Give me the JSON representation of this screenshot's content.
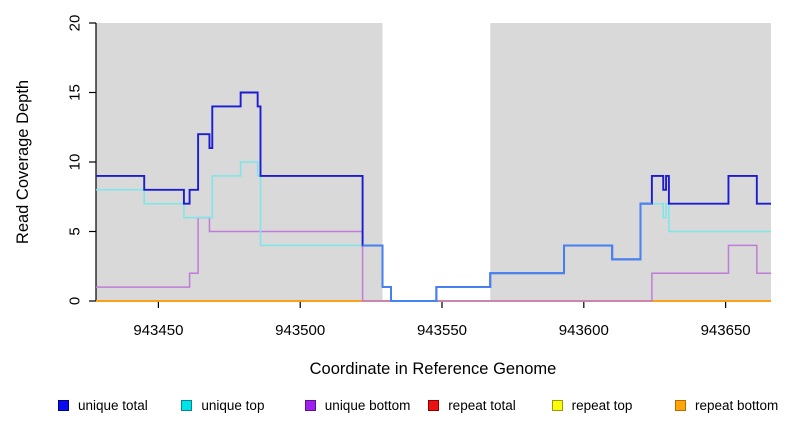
{
  "chart_data": {
    "type": "line",
    "subtype": "step-after-coverage-plot",
    "title": "",
    "xlabel": "Coordinate in Reference Genome",
    "ylabel": "Read Coverage Depth",
    "xlim": [
      943428,
      943666
    ],
    "ylim": [
      0,
      20
    ],
    "x_ticks": [
      943450,
      943500,
      943550,
      943600,
      943650
    ],
    "y_ticks": [
      0,
      5,
      10,
      15,
      20
    ],
    "grid": "off",
    "plot_bg_color": "#d9d9d9",
    "gap_region_color": "#ffffff",
    "shaded_regions": [
      [
        943428,
        943529
      ],
      [
        943567,
        943666
      ]
    ],
    "gap_region": [
      943529,
      943567
    ],
    "legend_position": "bottom",
    "series": [
      {
        "name": "unique total",
        "line_color": "#1c1cd2",
        "overlap_line_color": "#4583f0",
        "legend_fill": "#0a0aee",
        "legend_border": "#000080",
        "points": [
          [
            943428,
            9
          ],
          [
            943445,
            8
          ],
          [
            943459,
            7
          ],
          [
            943461,
            8
          ],
          [
            943464,
            12
          ],
          [
            943468,
            11
          ],
          [
            943469,
            14
          ],
          [
            943479,
            15
          ],
          [
            943485,
            14
          ],
          [
            943486,
            9
          ],
          [
            943522,
            4
          ],
          [
            943529,
            1
          ],
          [
            943532,
            0
          ],
          [
            943548,
            1
          ],
          [
            943567,
            2
          ],
          [
            943593,
            4
          ],
          [
            943610,
            3
          ],
          [
            943620,
            7
          ],
          [
            943624,
            9
          ],
          [
            943628,
            8
          ],
          [
            943629,
            9
          ],
          [
            943630,
            7
          ],
          [
            943651,
            9
          ],
          [
            943661,
            7
          ]
        ]
      },
      {
        "name": "unique top",
        "line_color": "#7de6e9",
        "legend_fill": "#00e2ea",
        "legend_border": "#00868b",
        "points": [
          [
            943428,
            8
          ],
          [
            943445,
            7
          ],
          [
            943459,
            6
          ],
          [
            943469,
            9
          ],
          [
            943479,
            10
          ],
          [
            943485,
            9
          ],
          [
            943486,
            4
          ],
          [
            943529,
            1
          ],
          [
            943532,
            0
          ],
          [
            943548,
            1
          ],
          [
            943567,
            2
          ],
          [
            943593,
            4
          ],
          [
            943610,
            3
          ],
          [
            943620,
            7
          ],
          [
            943628,
            6
          ],
          [
            943629,
            7
          ],
          [
            943630,
            5
          ]
        ]
      },
      {
        "name": "unique bottom",
        "line_color": "#c07cd8",
        "legend_fill": "#a021ef",
        "legend_border": "#5d1290",
        "points": [
          [
            943428,
            1
          ],
          [
            943461,
            2
          ],
          [
            943464,
            6
          ],
          [
            943468,
            5
          ],
          [
            943522,
            0
          ],
          [
            943624,
            2
          ],
          [
            943651,
            4
          ],
          [
            943661,
            2
          ]
        ]
      },
      {
        "name": "repeat total",
        "line_color": "#e02020",
        "legend_fill": "#ee1111",
        "legend_border": "#8b0000",
        "points": [
          [
            943428,
            0
          ]
        ]
      },
      {
        "name": "repeat top",
        "line_color": "#ffe400",
        "legend_fill": "#fcfc0a",
        "legend_border": "#99990a",
        "points": [
          [
            943428,
            0
          ]
        ]
      },
      {
        "name": "repeat bottom",
        "line_color": "#ff9e16",
        "legend_fill": "#ffa50a",
        "legend_border": "#b86b00",
        "points": [
          [
            943428,
            0
          ]
        ]
      }
    ]
  }
}
